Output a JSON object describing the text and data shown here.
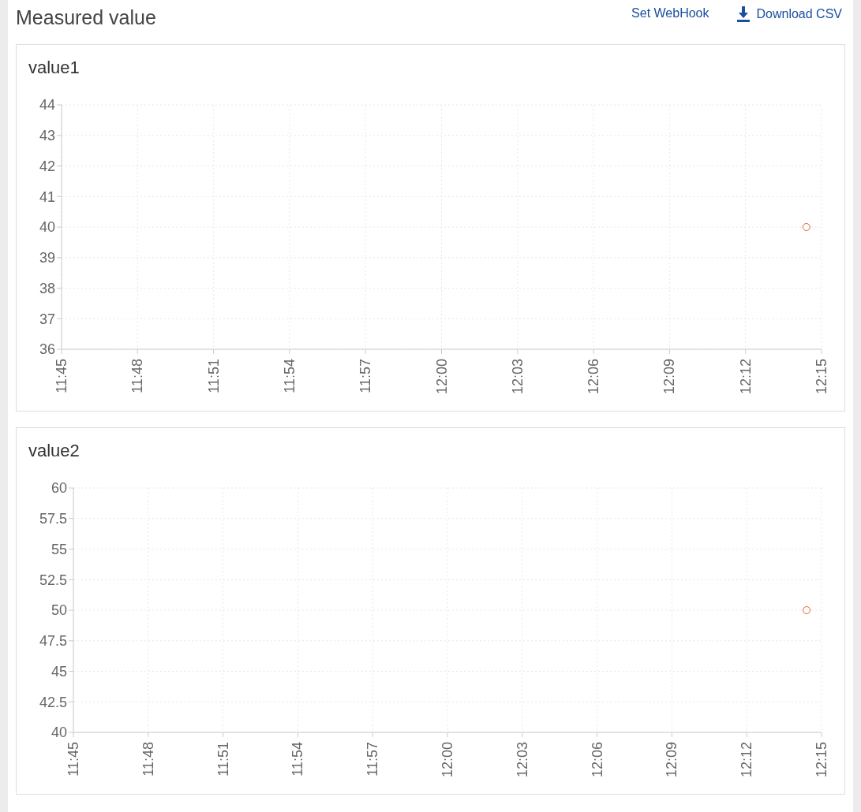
{
  "chart_data": [
    {
      "type": "scatter",
      "title": "value1",
      "annotations": [
        "Measured value",
        "Set WebHook",
        "Download CSV"
      ],
      "x": [
        12.24
      ],
      "series": [
        {
          "color": "#e0603a",
          "values": [
            40
          ]
        }
      ],
      "xlim": [
        11.75,
        12.25
      ],
      "xticks": [
        {
          "value": 11.75,
          "label": "11:45"
        },
        {
          "value": 11.8,
          "label": "11:48"
        },
        {
          "value": 11.85,
          "label": "11:51"
        },
        {
          "value": 11.9,
          "label": "11:54"
        },
        {
          "value": 11.95,
          "label": "11:57"
        },
        {
          "value": 12,
          "label": "12:00"
        },
        {
          "value": 12.05,
          "label": "12:03"
        },
        {
          "value": 12.1,
          "label": "12:06"
        },
        {
          "value": 12.15,
          "label": "12:09"
        },
        {
          "value": 12.2,
          "label": "12:12"
        },
        {
          "value": 12.25,
          "label": "12:15"
        }
      ],
      "ylim": [
        36,
        44
      ],
      "yticks": [
        36,
        37,
        38,
        39,
        40,
        41,
        42,
        43,
        44
      ],
      "grid": true,
      "marker": "circle",
      "legend": false
    },
    {
      "type": "scatter",
      "title": "value2",
      "x": [
        12.24
      ],
      "series": [
        {
          "color": "#e0603a",
          "values": [
            50
          ]
        }
      ],
      "xlim": [
        11.75,
        12.25
      ],
      "xticks": [
        {
          "value": 11.75,
          "label": "11:45"
        },
        {
          "value": 11.8,
          "label": "11:48"
        },
        {
          "value": 11.85,
          "label": "11:51"
        },
        {
          "value": 11.9,
          "label": "11:54"
        },
        {
          "value": 11.95,
          "label": "11:57"
        },
        {
          "value": 12,
          "label": "12:00"
        },
        {
          "value": 12.05,
          "label": "12:03"
        },
        {
          "value": 12.1,
          "label": "12:06"
        },
        {
          "value": 12.15,
          "label": "12:09"
        },
        {
          "value": 12.2,
          "label": "12:12"
        },
        {
          "value": 12.25,
          "label": "12:15"
        }
      ],
      "ylim": [
        40,
        60
      ],
      "yticks": [
        40,
        42.5,
        45,
        47.5,
        50,
        52.5,
        55,
        57.5,
        60
      ],
      "grid": true,
      "marker": "circle",
      "legend": false
    }
  ]
}
